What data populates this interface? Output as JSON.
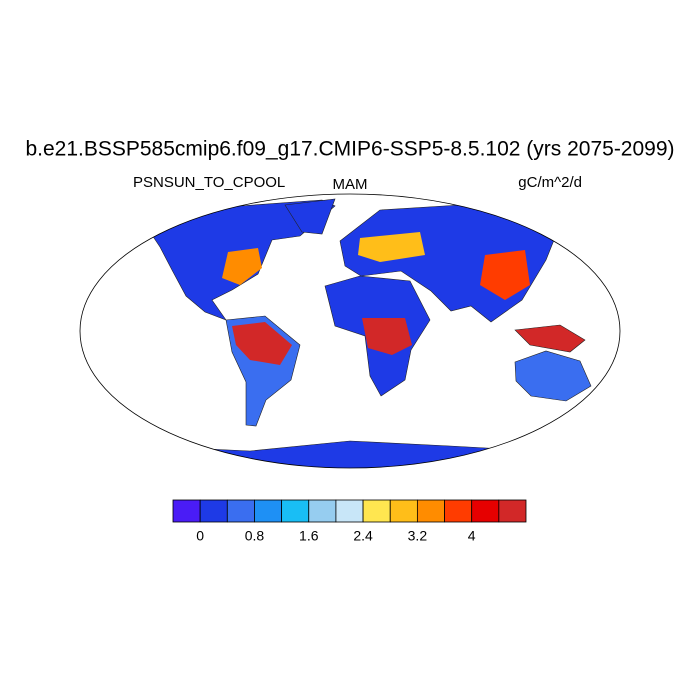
{
  "title": "b.e21.BSSP585cmip6.f09_g17.CMIP6-SSP5-8.5.102 (yrs 2075-2099)",
  "left_label": "PSNSUN_TO_CPOOL",
  "center_label": "MAM",
  "right_label": "gC/m^2/d",
  "colorbar": {
    "colors": [
      "#4a1cf6",
      "#1e3ae6",
      "#3a6ef0",
      "#1e90f5",
      "#19bef5",
      "#96cdf0",
      "#c8e6f8",
      "#ffe650",
      "#ffbe19",
      "#ff8c00",
      "#ff3c00",
      "#e60000",
      "#d22828"
    ],
    "lim": [
      -0.4,
      4.8
    ],
    "ticks": [
      0,
      0.8,
      1.6,
      2.4,
      3.2,
      4
    ]
  }
}
